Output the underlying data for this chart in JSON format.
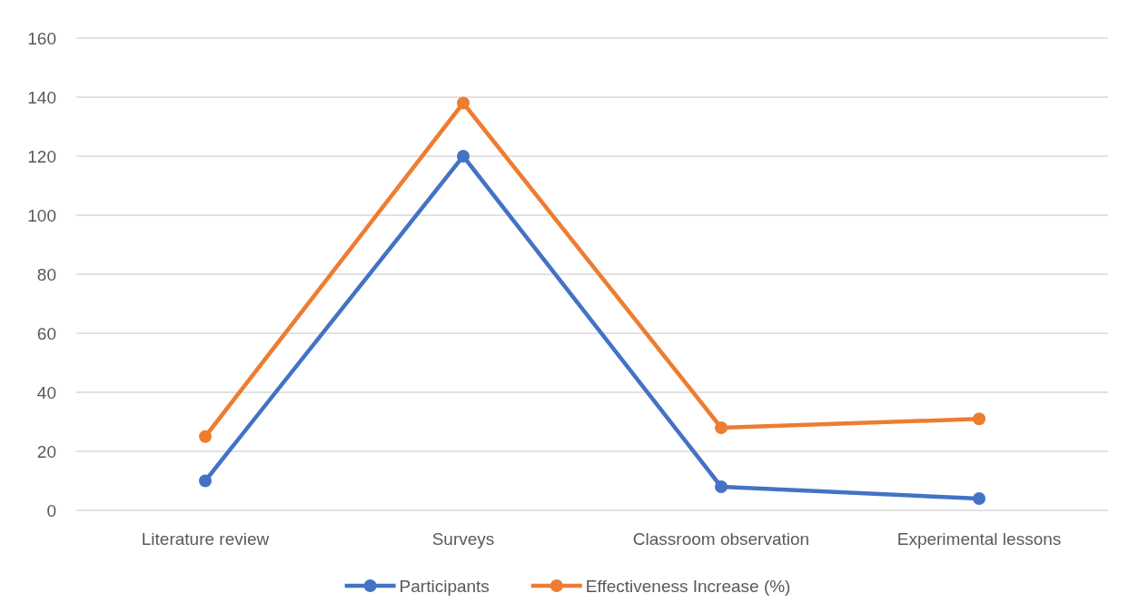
{
  "chart_data": {
    "type": "line",
    "categories": [
      "Literature review",
      "Surveys",
      "Classroom observation",
      "Experimental lessons"
    ],
    "series": [
      {
        "name": "Participants",
        "color": "#4472c4",
        "values": [
          10,
          120,
          8,
          4
        ]
      },
      {
        "name": "Effectiveness Increase (%)",
        "color": "#ed7d31",
        "values": [
          25,
          138,
          28,
          31
        ]
      }
    ],
    "ylim": [
      0,
      160
    ],
    "yticks": [
      0,
      20,
      40,
      60,
      80,
      100,
      120,
      140,
      160
    ],
    "grid": "y",
    "legend": "bottom",
    "marker": "circle",
    "line_style": "solid"
  }
}
